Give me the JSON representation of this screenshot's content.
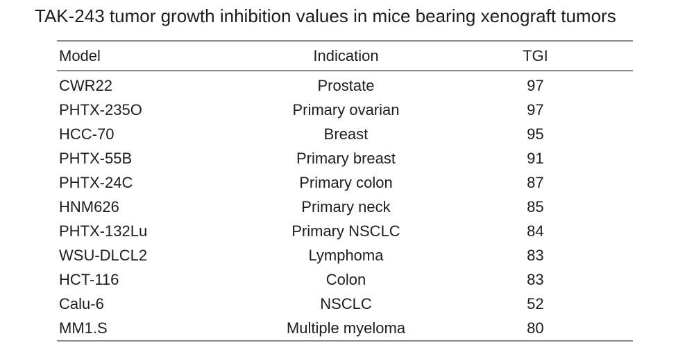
{
  "title": "TAK-243 tumor growth inhibition values in mice bearing xenograft tumors",
  "table": {
    "columns": [
      "Model",
      "Indication",
      "TGI"
    ],
    "rows": [
      {
        "model": "CWR22",
        "indication": "Prostate",
        "tgi": "97"
      },
      {
        "model": "PHTX-235O",
        "indication": "Primary ovarian",
        "tgi": "97"
      },
      {
        "model": "HCC-70",
        "indication": "Breast",
        "tgi": "95"
      },
      {
        "model": "PHTX-55B",
        "indication": "Primary breast",
        "tgi": "91"
      },
      {
        "model": "PHTX-24C",
        "indication": "Primary colon",
        "tgi": "87"
      },
      {
        "model": "HNM626",
        "indication": "Primary neck",
        "tgi": "85"
      },
      {
        "model": "PHTX-132Lu",
        "indication": "Primary NSCLC",
        "tgi": "84"
      },
      {
        "model": "WSU-DLCL2",
        "indication": "Lymphoma",
        "tgi": "83"
      },
      {
        "model": "HCT-116",
        "indication": "Colon",
        "tgi": "83"
      },
      {
        "model": "Calu-6",
        "indication": "NSCLC",
        "tgi": "52"
      },
      {
        "model": "MM1.S",
        "indication": "Multiple myeloma",
        "tgi": "80"
      }
    ]
  },
  "colors": {
    "text": "#1d1d1d",
    "rule": "#8a8a8a",
    "background": "#ffffff"
  }
}
